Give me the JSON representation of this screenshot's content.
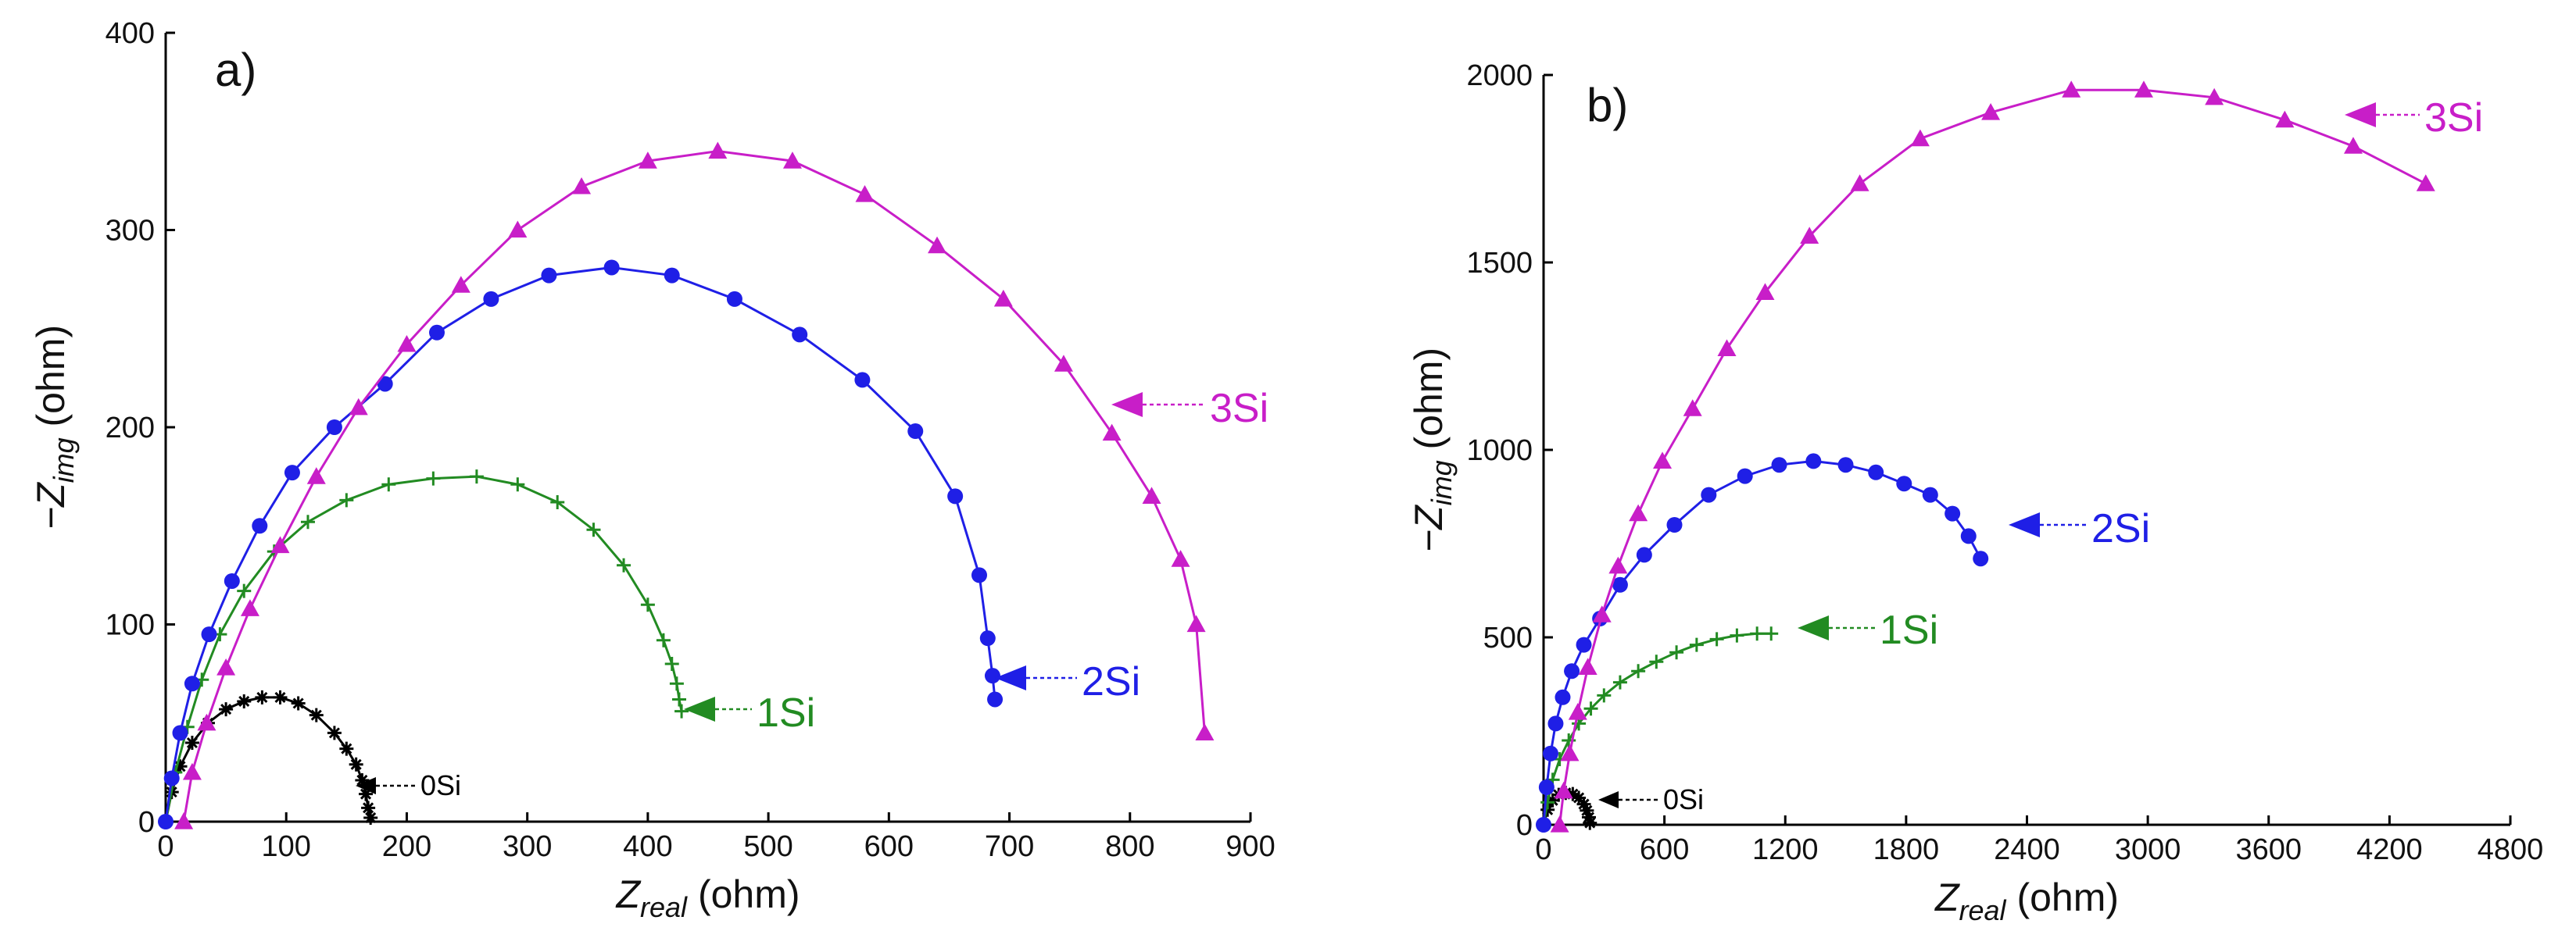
{
  "chart_data": [
    {
      "type": "scatter",
      "panel_label": "a)",
      "xlabel_main": "Z",
      "xlabel_sub": "real",
      "xlabel_unit": " (ohm)",
      "ylabel_prefix": "−Z",
      "ylabel_sub": "img",
      "ylabel_unit": " (ohm)",
      "xlim": [
        0,
        900
      ],
      "ylim": [
        0,
        400
      ],
      "xticks": [
        0,
        100,
        200,
        300,
        400,
        500,
        600,
        700,
        800,
        900
      ],
      "yticks": [
        0,
        100,
        200,
        300,
        400
      ],
      "series": [
        {
          "name": "0Si",
          "color": "#000000",
          "marker": "star",
          "x": [
            0,
            5,
            12,
            22,
            35,
            50,
            65,
            80,
            95,
            110,
            125,
            140,
            150,
            158,
            163,
            166,
            168,
            170
          ],
          "y": [
            0,
            15,
            28,
            40,
            50,
            57,
            61,
            63,
            63,
            60,
            54,
            45,
            37,
            29,
            21,
            14,
            7,
            2
          ]
        },
        {
          "name": "1Si",
          "color": "#228b22",
          "marker": "plus",
          "x": [
            0,
            8,
            18,
            30,
            45,
            65,
            90,
            118,
            150,
            185,
            222,
            258,
            292,
            325,
            355,
            380,
            400,
            413,
            420,
            424,
            426,
            428
          ],
          "y": [
            0,
            25,
            48,
            72,
            95,
            117,
            137,
            152,
            163,
            171,
            174,
            175,
            171,
            162,
            148,
            130,
            110,
            92,
            80,
            70,
            62,
            56
          ]
        },
        {
          "name": "2Si",
          "color": "#1f1fe6",
          "marker": "circle",
          "x": [
            0,
            5,
            12,
            22,
            36,
            55,
            78,
            105,
            140,
            182,
            225,
            270,
            318,
            370,
            420,
            472,
            526,
            578,
            622,
            655,
            675,
            682,
            686,
            688
          ],
          "y": [
            0,
            22,
            45,
            70,
            95,
            122,
            150,
            177,
            200,
            222,
            248,
            265,
            277,
            281,
            277,
            265,
            247,
            224,
            198,
            165,
            125,
            93,
            74,
            62
          ]
        },
        {
          "name": "3Si",
          "color": "#c81ec8",
          "marker": "triangle",
          "x": [
            15,
            22,
            34,
            50,
            70,
            95,
            125,
            160,
            200,
            245,
            292,
            345,
            400,
            458,
            520,
            580,
            640,
            695,
            745,
            785,
            818,
            842,
            855,
            862
          ],
          "y": [
            0,
            25,
            50,
            78,
            108,
            140,
            175,
            210,
            242,
            272,
            300,
            322,
            335,
            340,
            335,
            318,
            292,
            265,
            232,
            197,
            165,
            133,
            100,
            45
          ]
        }
      ],
      "annotations": [
        {
          "label": "3Si",
          "series": "3Si",
          "size": "big"
        },
        {
          "label": "2Si",
          "series": "2Si",
          "size": "big"
        },
        {
          "label": "1Si",
          "series": "1Si",
          "size": "big"
        },
        {
          "label": "0Si",
          "series": "0Si",
          "size": "small"
        }
      ]
    },
    {
      "type": "scatter",
      "panel_label": "b)",
      "xlabel_main": "Z",
      "xlabel_sub": "real",
      "xlabel_unit": " (ohm)",
      "ylabel_prefix": "−Z",
      "ylabel_sub": "img",
      "ylabel_unit": " (ohm)",
      "xlim": [
        0,
        4800
      ],
      "ylim": [
        0,
        2000
      ],
      "xticks": [
        0,
        600,
        1200,
        1800,
        2400,
        3000,
        3600,
        4200,
        4800
      ],
      "yticks": [
        0,
        500,
        1000,
        1500,
        2000
      ],
      "series": [
        {
          "name": "0Si",
          "color": "#000000",
          "marker": "star",
          "x": [
            0,
            20,
            45,
            75,
            110,
            145,
            175,
            200,
            215,
            225,
            230
          ],
          "y": [
            0,
            40,
            65,
            80,
            85,
            82,
            72,
            55,
            38,
            20,
            5
          ]
        },
        {
          "name": "1Si",
          "color": "#228b22",
          "marker": "plus",
          "x": [
            0,
            20,
            45,
            80,
            125,
            175,
            235,
            300,
            380,
            470,
            560,
            660,
            760,
            860,
            960,
            1060,
            1130
          ],
          "y": [
            0,
            60,
            120,
            175,
            225,
            270,
            310,
            345,
            380,
            410,
            435,
            460,
            480,
            495,
            505,
            510,
            510
          ]
        },
        {
          "name": "2Si",
          "color": "#1f1fe6",
          "marker": "circle",
          "x": [
            0,
            15,
            35,
            60,
            95,
            140,
            200,
            280,
            380,
            500,
            650,
            820,
            1000,
            1170,
            1340,
            1500,
            1650,
            1790,
            1920,
            2030,
            2110,
            2170
          ],
          "y": [
            0,
            100,
            190,
            270,
            340,
            410,
            480,
            550,
            640,
            720,
            800,
            880,
            930,
            960,
            970,
            960,
            940,
            910,
            880,
            830,
            770,
            710
          ]
        },
        {
          "name": "3Si",
          "color": "#c81ec8",
          "marker": "triangle",
          "x": [
            80,
            100,
            130,
            170,
            220,
            290,
            370,
            470,
            590,
            740,
            910,
            1100,
            1320,
            1570,
            1870,
            2220,
            2620,
            2980,
            3330,
            3680,
            4020,
            4380
          ],
          "y": [
            0,
            90,
            190,
            300,
            420,
            560,
            690,
            830,
            970,
            1110,
            1270,
            1420,
            1570,
            1710,
            1830,
            1900,
            1960,
            1960,
            1940,
            1880,
            1810,
            1710
          ]
        }
      ],
      "annotations": [
        {
          "label": "3Si",
          "series": "3Si",
          "size": "big"
        },
        {
          "label": "2Si",
          "series": "2Si",
          "size": "big"
        },
        {
          "label": "1Si",
          "series": "1Si",
          "size": "big"
        },
        {
          "label": "0Si",
          "series": "0Si",
          "size": "small"
        }
      ]
    }
  ]
}
